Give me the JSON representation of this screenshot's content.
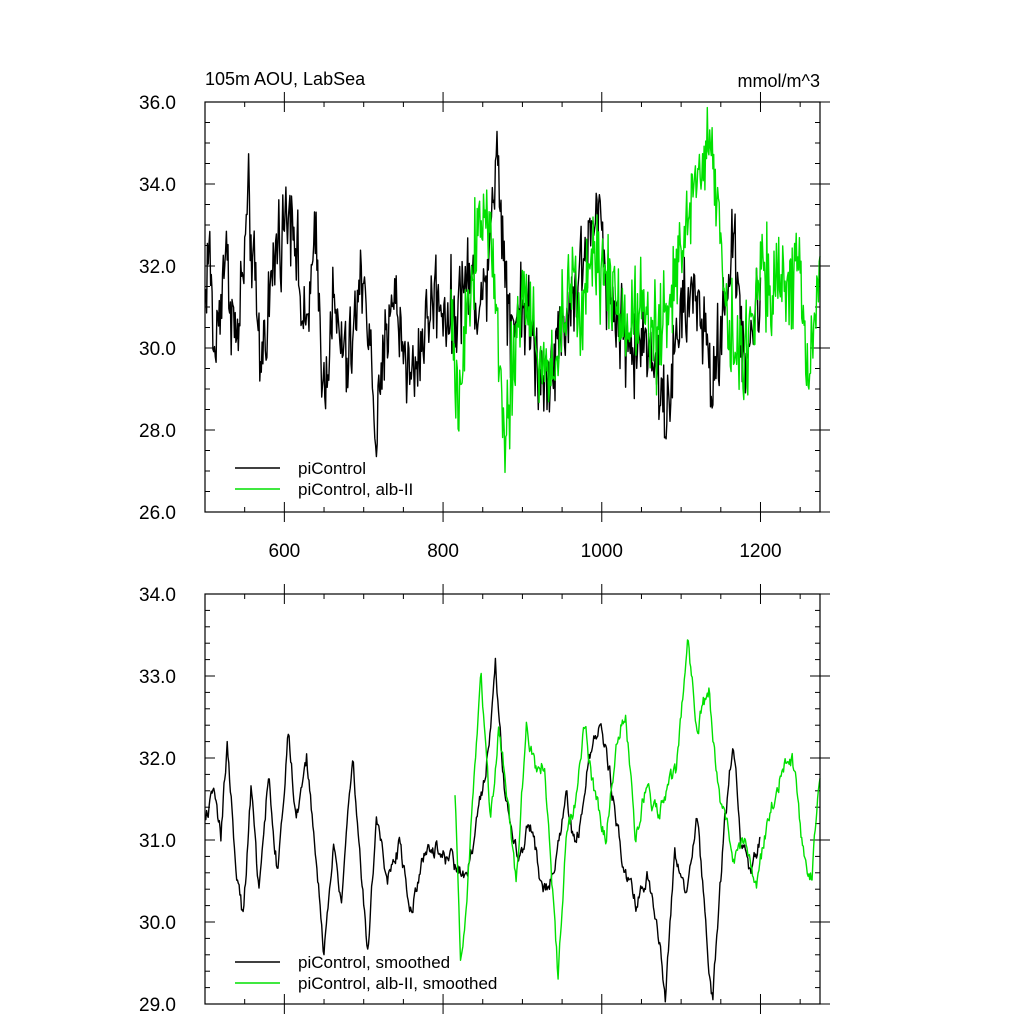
{
  "chart_data": [
    {
      "type": "line",
      "title_left": "105m AOU, LabSea",
      "title_right": "mmol/m^3",
      "xlabel": "",
      "ylabel": "",
      "xlim": [
        500,
        1275
      ],
      "ylim": [
        26.0,
        36.0
      ],
      "x_ticks": [
        600,
        800,
        1000,
        1200
      ],
      "x_tick_labels": [
        "600",
        "800",
        "1000",
        "1200"
      ],
      "y_ticks": [
        26.0,
        28.0,
        30.0,
        32.0,
        34.0,
        36.0
      ],
      "y_tick_labels": [
        "26.0",
        "28.0",
        "30.0",
        "32.0",
        "34.0",
        "36.0"
      ],
      "grid": false,
      "legend_position": "bottom-left",
      "series": [
        {
          "name": "piControl",
          "color": "#000000",
          "x_start": 500,
          "x_end": 1200,
          "keypoints": [
            [
              500,
              31.2
            ],
            [
              505,
              32.6
            ],
            [
              512,
              29.7
            ],
            [
              525,
              32.4
            ],
            [
              540,
              30.0
            ],
            [
              555,
              33.5
            ],
            [
              570,
              29.6
            ],
            [
              590,
              32.5
            ],
            [
              610,
              33.6
            ],
            [
              625,
              30.2
            ],
            [
              640,
              32.5
            ],
            [
              650,
              28.8
            ],
            [
              660,
              31.0
            ],
            [
              680,
              29.5
            ],
            [
              700,
              32.0
            ],
            [
              716,
              27.8
            ],
            [
              735,
              31.5
            ],
            [
              760,
              29.2
            ],
            [
              790,
              31.4
            ],
            [
              812,
              30.6
            ],
            [
              830,
              31.8
            ],
            [
              850,
              31.0
            ],
            [
              867,
              34.8
            ],
            [
              885,
              30.6
            ],
            [
              900,
              31.2
            ],
            [
              925,
              29.2
            ],
            [
              950,
              30.4
            ],
            [
              975,
              32.0
            ],
            [
              998,
              33.3
            ],
            [
              1010,
              31.2
            ],
            [
              1040,
              29.8
            ],
            [
              1060,
              30.4
            ],
            [
              1080,
              28.3
            ],
            [
              1100,
              30.8
            ],
            [
              1120,
              31.4
            ],
            [
              1140,
              29.0
            ],
            [
              1165,
              32.6
            ],
            [
              1180,
              29.8
            ],
            [
              1200,
              31.2
            ]
          ],
          "variability": 1.1
        },
        {
          "name": "piControl, alb-II",
          "color": "#00e000",
          "x_start": 810,
          "x_end": 1275,
          "keypoints": [
            [
              810,
              31.0
            ],
            [
              818,
              28.2
            ],
            [
              835,
              31.5
            ],
            [
              850,
              33.8
            ],
            [
              867,
              31.2
            ],
            [
              878,
              27.9
            ],
            [
              900,
              31.5
            ],
            [
              925,
              29.4
            ],
            [
              940,
              29.6
            ],
            [
              960,
              31.5
            ],
            [
              975,
              30.8
            ],
            [
              990,
              32.6
            ],
            [
              1010,
              31.6
            ],
            [
              1030,
              30.6
            ],
            [
              1050,
              31.2
            ],
            [
              1075,
              30.3
            ],
            [
              1095,
              31.8
            ],
            [
              1110,
              33.5
            ],
            [
              1138,
              35.1
            ],
            [
              1160,
              30.6
            ],
            [
              1180,
              29.4
            ],
            [
              1200,
              32.2
            ],
            [
              1225,
              31.4
            ],
            [
              1245,
              32.0
            ],
            [
              1260,
              29.4
            ],
            [
              1275,
              31.7
            ]
          ],
          "variability": 1.2
        }
      ],
      "legend": [
        "piControl",
        "piControl, alb-II"
      ]
    },
    {
      "type": "line",
      "xlabel": "",
      "ylabel": "",
      "xlim": [
        500,
        1275
      ],
      "ylim": [
        29.0,
        34.0
      ],
      "x_ticks": [
        600,
        800,
        1000,
        1200
      ],
      "y_ticks": [
        29.0,
        30.0,
        31.0,
        32.0,
        33.0,
        34.0
      ],
      "y_tick_labels": [
        "29.0",
        "30.0",
        "31.0",
        "32.0",
        "33.0",
        "34.0"
      ],
      "grid": false,
      "legend_position": "bottom-left",
      "series": [
        {
          "name": "piControl, smoothed",
          "color": "#000000",
          "x_start": 500,
          "x_end": 1200,
          "keypoints": [
            [
              500,
              31.2
            ],
            [
              510,
              31.6
            ],
            [
              520,
              31.0
            ],
            [
              528,
              32.2
            ],
            [
              538,
              30.8
            ],
            [
              548,
              30.0
            ],
            [
              558,
              31.6
            ],
            [
              568,
              30.3
            ],
            [
              580,
              31.8
            ],
            [
              592,
              30.6
            ],
            [
              605,
              32.3
            ],
            [
              615,
              31.3
            ],
            [
              628,
              32.0
            ],
            [
              640,
              30.8
            ],
            [
              650,
              29.6
            ],
            [
              662,
              31.0
            ],
            [
              672,
              30.2
            ],
            [
              686,
              32.1
            ],
            [
              697,
              30.6
            ],
            [
              705,
              29.6
            ],
            [
              716,
              31.2
            ],
            [
              730,
              30.6
            ],
            [
              745,
              30.9
            ],
            [
              760,
              30.2
            ],
            [
              780,
              31.0
            ],
            [
              800,
              30.8
            ],
            [
              812,
              30.7
            ],
            [
              830,
              30.5
            ],
            [
              845,
              31.3
            ],
            [
              858,
              32.2
            ],
            [
              866,
              33.1
            ],
            [
              878,
              31.6
            ],
            [
              895,
              30.8
            ],
            [
              910,
              31.2
            ],
            [
              925,
              30.4
            ],
            [
              940,
              30.6
            ],
            [
              955,
              31.6
            ],
            [
              968,
              30.8
            ],
            [
              982,
              32.0
            ],
            [
              998,
              32.4
            ],
            [
              1010,
              31.8
            ],
            [
              1025,
              30.8
            ],
            [
              1045,
              30.2
            ],
            [
              1060,
              30.6
            ],
            [
              1075,
              29.6
            ],
            [
              1080,
              29.1
            ],
            [
              1092,
              30.8
            ],
            [
              1105,
              30.4
            ],
            [
              1120,
              31.4
            ],
            [
              1135,
              29.3
            ],
            [
              1140,
              29.1
            ],
            [
              1155,
              31.2
            ],
            [
              1165,
              32.2
            ],
            [
              1175,
              31.0
            ],
            [
              1185,
              30.6
            ],
            [
              1200,
              31.0
            ]
          ],
          "variability": 0.18
        },
        {
          "name": "piControl, alb-II, smoothed",
          "color": "#00e000",
          "x_start": 815,
          "x_end": 1275,
          "keypoints": [
            [
              815,
              31.5
            ],
            [
              822,
              29.6
            ],
            [
              830,
              30.2
            ],
            [
              838,
              31.6
            ],
            [
              848,
              33.0
            ],
            [
              860,
              31.2
            ],
            [
              870,
              32.4
            ],
            [
              880,
              31.6
            ],
            [
              892,
              30.4
            ],
            [
              905,
              32.4
            ],
            [
              918,
              31.8
            ],
            [
              928,
              32.0
            ],
            [
              935,
              30.8
            ],
            [
              945,
              29.3
            ],
            [
              955,
              31.0
            ],
            [
              966,
              31.4
            ],
            [
              978,
              32.4
            ],
            [
              990,
              31.6
            ],
            [
              1005,
              31.0
            ],
            [
              1018,
              32.2
            ],
            [
              1030,
              32.6
            ],
            [
              1042,
              31.0
            ],
            [
              1055,
              31.6
            ],
            [
              1070,
              31.3
            ],
            [
              1082,
              31.6
            ],
            [
              1093,
              31.8
            ],
            [
              1108,
              33.4
            ],
            [
              1120,
              32.4
            ],
            [
              1135,
              32.8
            ],
            [
              1150,
              31.4
            ],
            [
              1165,
              30.8
            ],
            [
              1180,
              31.0
            ],
            [
              1195,
              30.4
            ],
            [
              1210,
              31.3
            ],
            [
              1225,
              31.8
            ],
            [
              1240,
              32.0
            ],
            [
              1255,
              30.8
            ],
            [
              1265,
              30.6
            ],
            [
              1275,
              31.7
            ]
          ],
          "variability": 0.18
        }
      ],
      "legend": [
        "piControl, smoothed",
        "piControl, alb-II, smoothed"
      ]
    }
  ]
}
